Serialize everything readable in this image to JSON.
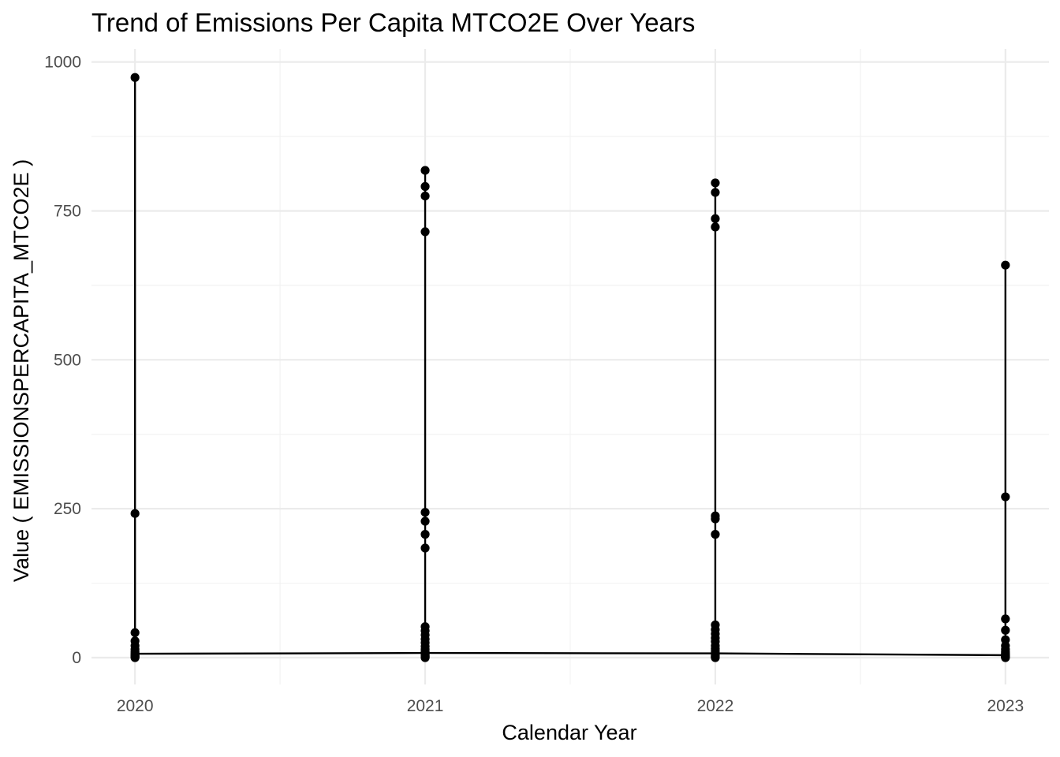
{
  "chart_data": {
    "type": "scatter",
    "title": "Trend of Emissions Per Capita MTCO2E Over Years",
    "xlabel": "Calendar Year",
    "ylabel": "Value ( EMISSIONSPERCAPITA_MTCO2E )",
    "xlim": [
      2019.85,
      2023.15
    ],
    "ylim": [
      -45,
      1022
    ],
    "x_ticks": [
      2020,
      2021,
      2022,
      2023
    ],
    "y_ticks": [
      0,
      250,
      500,
      750,
      1000
    ],
    "grid": true,
    "legend": "none",
    "points": [
      {
        "x": 2020,
        "values": [
          974,
          242,
          42,
          28,
          20,
          14,
          10,
          7,
          5,
          3,
          2,
          1,
          0
        ]
      },
      {
        "x": 2021,
        "values": [
          818,
          791,
          775,
          715,
          244,
          229,
          207,
          184,
          52,
          45,
          38,
          31,
          25,
          19,
          14,
          10,
          7,
          5,
          3,
          2,
          1,
          0
        ]
      },
      {
        "x": 2022,
        "values": [
          797,
          781,
          737,
          723,
          238,
          233,
          207,
          55,
          47,
          40,
          33,
          27,
          20,
          15,
          11,
          7,
          5,
          3,
          2,
          1,
          0
        ]
      },
      {
        "x": 2023,
        "values": [
          659,
          270,
          65,
          46,
          30,
          20,
          14,
          10,
          7,
          5,
          3,
          2,
          1,
          0
        ]
      }
    ],
    "trend_line": {
      "x": [
        2020,
        2021,
        2022,
        2023
      ],
      "y": [
        6.5,
        7.8,
        7.1,
        4.1
      ]
    },
    "colors": {
      "points": "#000000",
      "line": "#000000",
      "grid": "#ebebeb",
      "background": "#ffffff"
    }
  }
}
